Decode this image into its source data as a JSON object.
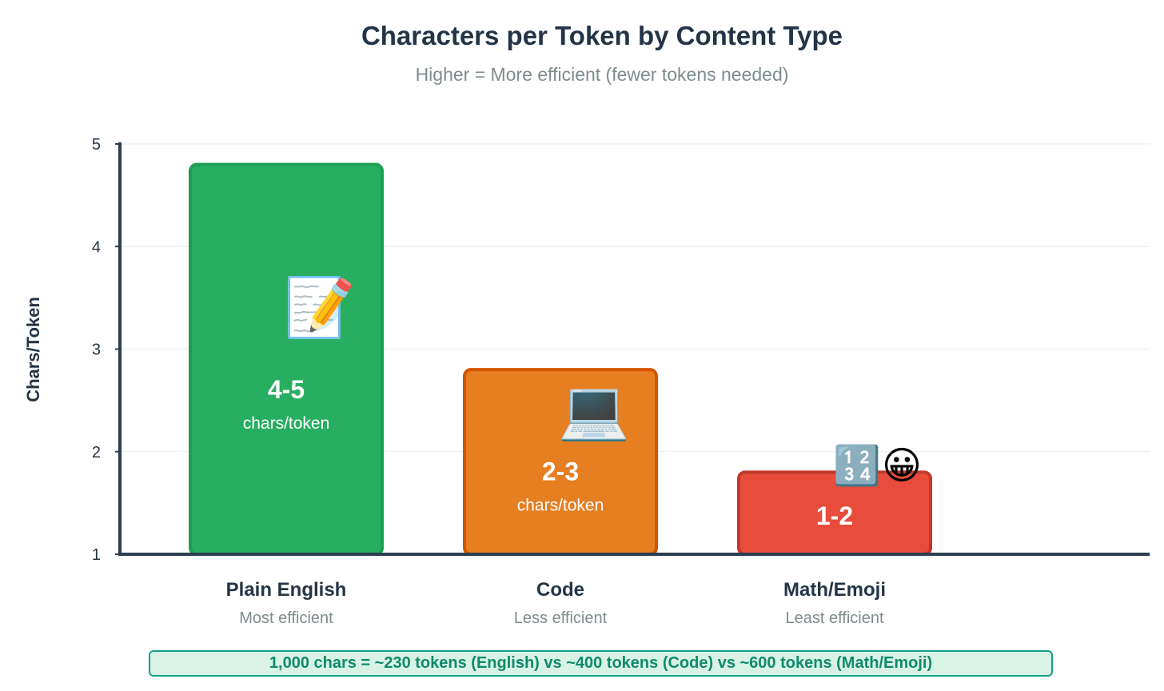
{
  "title": "Characters per Token by Content Type",
  "subtitle": "Higher = More efficient (fewer tokens needed)",
  "footer_note": "1,000 chars = ~230 tokens (English) vs ~400 tokens (Code) vs ~600 tokens (Math/Emoji)",
  "chart_data": {
    "type": "bar",
    "ylabel": "Chars/Token",
    "xlabel": "",
    "ylim": [
      1,
      5
    ],
    "yticks": [
      1,
      2,
      3,
      4,
      5
    ],
    "grid": true,
    "categories": [
      "Plain English",
      "Code",
      "Math/Emoji"
    ],
    "subtitles": [
      "Most efficient",
      "Less efficient",
      "Least efficient"
    ],
    "values": [
      4.8,
      2.8,
      1.8
    ],
    "range_labels": [
      "4-5",
      "2-3",
      "1-2"
    ],
    "unit_labels": [
      "chars/token",
      "chars/token",
      ""
    ],
    "colors": [
      "#27ae60",
      "#e67e22",
      "#e74c3c"
    ],
    "border_colors": [
      "#1e9e52",
      "#d35400",
      "#c0392b"
    ],
    "icons": [
      [
        "📝"
      ],
      [
        "💻"
      ],
      [
        "🔢",
        "😀"
      ]
    ],
    "icon_names": [
      [
        "memo-icon"
      ],
      [
        "laptop-icon"
      ],
      [
        "numbers-icon",
        "grinning-face-icon"
      ]
    ]
  }
}
